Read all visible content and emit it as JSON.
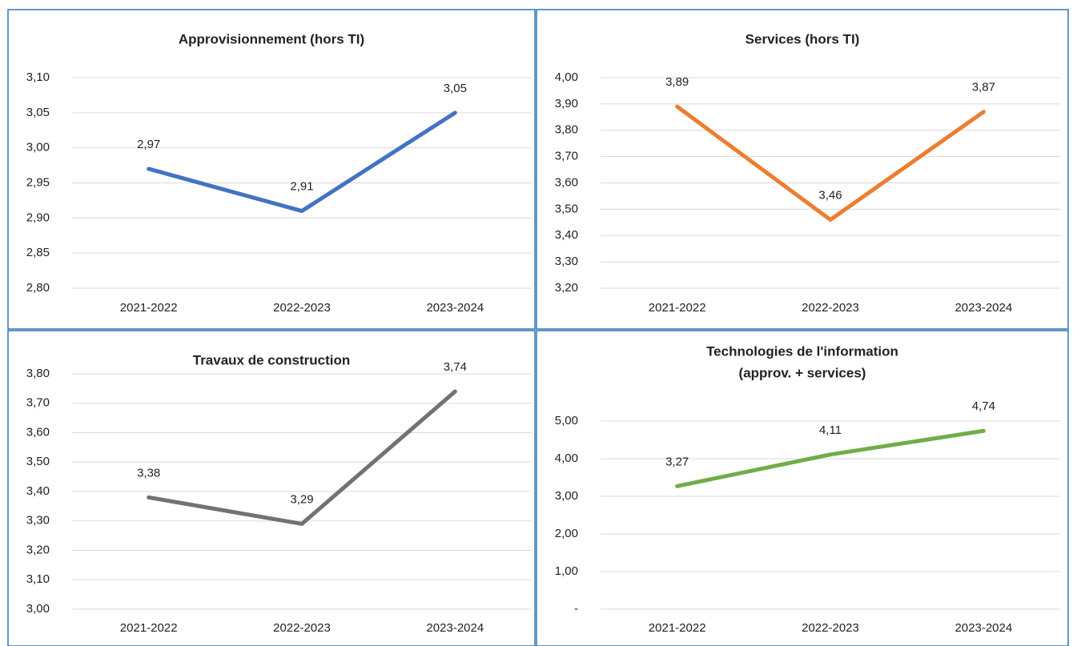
{
  "chart_data": [
    {
      "type": "line",
      "title": [
        "Approvisionnement (hors TI)"
      ],
      "categories": [
        "2021-2022",
        "2022-2023",
        "2023-2024"
      ],
      "series": [
        {
          "color": "#4472c4",
          "values": [
            2.97,
            2.91,
            3.05
          ],
          "value_labels": [
            "2,97",
            "2,91",
            "3,05"
          ]
        }
      ],
      "ylim": [
        2.8,
        3.1
      ],
      "yticks": [
        {
          "value": 2.8,
          "label": "2,80"
        },
        {
          "value": 2.85,
          "label": "2,85"
        },
        {
          "value": 2.9,
          "label": "2,90"
        },
        {
          "value": 2.95,
          "label": "2,95"
        },
        {
          "value": 3.0,
          "label": "3,00"
        },
        {
          "value": 3.05,
          "label": "3,05"
        },
        {
          "value": 3.1,
          "label": "3,10"
        }
      ],
      "grid": true
    },
    {
      "type": "line",
      "title": [
        "Services (hors TI)"
      ],
      "categories": [
        "2021-2022",
        "2022-2023",
        "2023-2024"
      ],
      "series": [
        {
          "color": "#ed7d31",
          "values": [
            3.89,
            3.46,
            3.87
          ],
          "value_labels": [
            "3,89",
            "3,46",
            "3,87"
          ]
        }
      ],
      "ylim": [
        3.2,
        4.0
      ],
      "yticks": [
        {
          "value": 3.2,
          "label": "3,20"
        },
        {
          "value": 3.3,
          "label": "3,30"
        },
        {
          "value": 3.4,
          "label": "3,40"
        },
        {
          "value": 3.5,
          "label": "3,50"
        },
        {
          "value": 3.6,
          "label": "3,60"
        },
        {
          "value": 3.7,
          "label": "3,70"
        },
        {
          "value": 3.8,
          "label": "3,80"
        },
        {
          "value": 3.9,
          "label": "3,90"
        },
        {
          "value": 4.0,
          "label": "4,00"
        }
      ],
      "grid": true
    },
    {
      "type": "line",
      "title": [
        "Travaux de construction"
      ],
      "categories": [
        "2021-2022",
        "2022-2023",
        "2023-2024"
      ],
      "series": [
        {
          "color": "#767171",
          "values": [
            3.38,
            3.29,
            3.74
          ],
          "value_labels": [
            "3,38",
            "3,29",
            "3,74"
          ]
        }
      ],
      "ylim": [
        3.0,
        3.8
      ],
      "yticks": [
        {
          "value": 3.0,
          "label": "3,00"
        },
        {
          "value": 3.1,
          "label": "3,10"
        },
        {
          "value": 3.2,
          "label": "3,20"
        },
        {
          "value": 3.3,
          "label": "3,30"
        },
        {
          "value": 3.4,
          "label": "3,40"
        },
        {
          "value": 3.5,
          "label": "3,50"
        },
        {
          "value": 3.6,
          "label": "3,60"
        },
        {
          "value": 3.7,
          "label": "3,70"
        },
        {
          "value": 3.8,
          "label": "3,80"
        }
      ],
      "grid": true
    },
    {
      "type": "line",
      "title": [
        "Technologies de l'information",
        "(approv. + services)"
      ],
      "categories": [
        "2021-2022",
        "2022-2023",
        "2023-2024"
      ],
      "series": [
        {
          "color": "#70ad47",
          "values": [
            3.27,
            4.11,
            4.74
          ],
          "value_labels": [
            "3,27",
            "4,11",
            "4,74"
          ]
        }
      ],
      "ylim": [
        0,
        5
      ],
      "yticks": [
        {
          "value": 0,
          "label": "-"
        },
        {
          "value": 1,
          "label": "1,00"
        },
        {
          "value": 2,
          "label": "2,00"
        },
        {
          "value": 3,
          "label": "3,00"
        },
        {
          "value": 4,
          "label": "4,00"
        },
        {
          "value": 5,
          "label": "5,00"
        }
      ],
      "grid": true
    }
  ]
}
